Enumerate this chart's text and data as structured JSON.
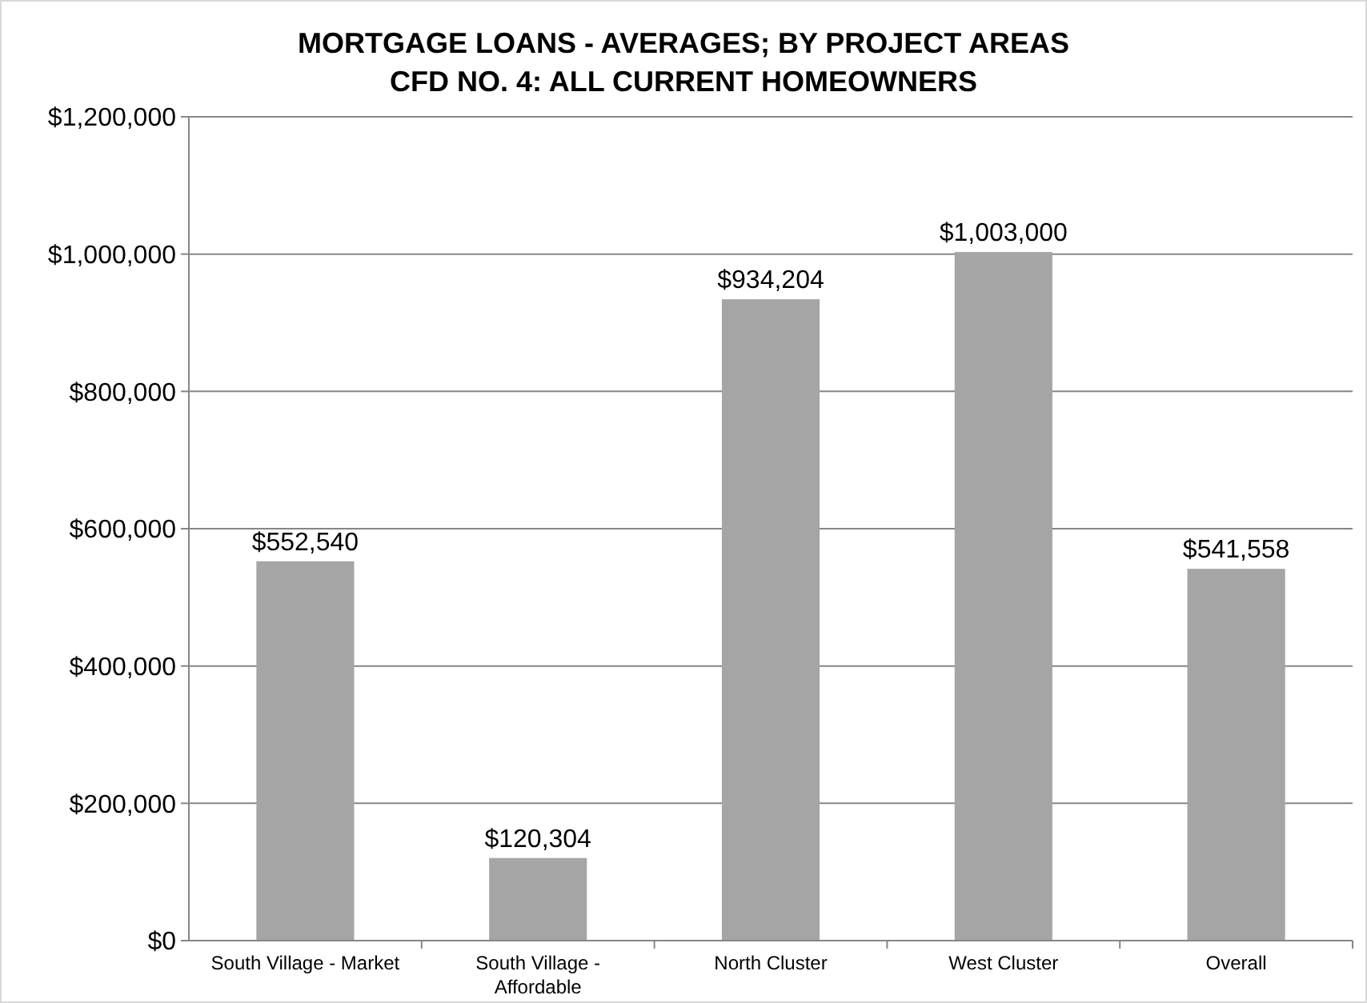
{
  "chart_data": {
    "type": "bar",
    "title": "MORTGAGE LOANS - AVERAGES; BY PROJECT AREAS",
    "subtitle": "CFD NO. 4:  ALL CURRENT HOMEOWNERS",
    "categories": [
      "South Village - Market",
      "South Village - Affordable",
      "North Cluster",
      "West Cluster",
      "Overall"
    ],
    "values": [
      552540,
      120304,
      934204,
      1003000,
      541558
    ],
    "value_labels": [
      "$552,540",
      "$120,304",
      "$934,204",
      "$1,003,000",
      "$541,558"
    ],
    "color": "#a5a5a5",
    "ylim": [
      0,
      1200000
    ],
    "yticks": [
      {
        "value": 0,
        "label": "$0"
      },
      {
        "value": 200000,
        "label": "$200,000"
      },
      {
        "value": 400000,
        "label": "$400,000"
      },
      {
        "value": 600000,
        "label": "$600,000"
      },
      {
        "value": 800000,
        "label": "$800,000"
      },
      {
        "value": 1000000,
        "label": "$1,000,000"
      },
      {
        "value": 1200000,
        "label": "$1,200,000"
      }
    ],
    "grid": "y"
  }
}
